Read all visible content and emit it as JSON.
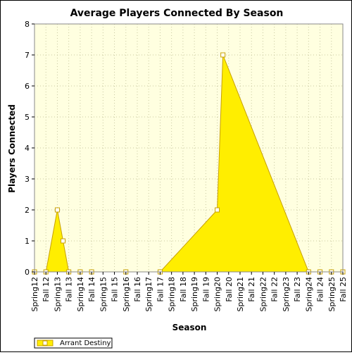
{
  "chart_data": {
    "type": "area",
    "title": "Average Players Connected By Season",
    "xlabel": "Season",
    "ylabel": "Players Connected",
    "ylim": [
      0,
      8
    ],
    "yticks": [
      "0",
      "1",
      "2",
      "3",
      "4",
      "5",
      "6",
      "7",
      "8"
    ],
    "grid": true,
    "legend_position": "bottom-left",
    "categories": [
      "Spring12",
      "Fall 12",
      "Spring13",
      "Fall 13",
      "Spring14",
      "Fall 14",
      "Spring15",
      "Fall 15",
      "Spring16",
      "Fall 16",
      "Spring17",
      "Fall 17",
      "Spring18",
      "Fall 18",
      "Spring19",
      "Fall 19",
      "Spring20",
      "Fall 20",
      "Spring21",
      "Fall 21",
      "Spring22",
      "Fall 22",
      "Spring23",
      "Fall 23",
      "Spring24",
      "Fall 24",
      "Spring25",
      "Fall 25"
    ],
    "x": [
      0,
      0.5,
      1,
      1.5,
      2,
      2.5,
      3,
      3.5,
      4,
      4.5,
      5,
      5.5,
      6,
      6.5,
      7,
      7.5,
      8,
      8.5,
      9,
      9.5,
      10,
      10.5,
      11,
      11.5,
      12,
      12.5,
      13,
      13.5
    ],
    "series": [
      {
        "name": "Arrant Destiny",
        "points": [
          {
            "x": 0,
            "y": 0
          },
          {
            "x": 0.5,
            "y": 0
          },
          {
            "x": 1,
            "y": 2
          },
          {
            "x": 1.25,
            "y": 1
          },
          {
            "x": 1.5,
            "y": 0
          },
          {
            "x": 2,
            "y": 0
          },
          {
            "x": 2.5,
            "y": 0
          },
          {
            "x": 4,
            "y": 0
          },
          {
            "x": 5.5,
            "y": 0
          },
          {
            "x": 8,
            "y": 2
          },
          {
            "x": 8.25,
            "y": 7
          },
          {
            "x": 12,
            "y": 0
          },
          {
            "x": 12.5,
            "y": 0
          },
          {
            "x": 13,
            "y": 0
          },
          {
            "x": 13.5,
            "y": 0
          }
        ]
      }
    ],
    "colors": {
      "fill": "#ffee00",
      "line": "#c8a000",
      "marker_fill": "#ffffff",
      "marker_stroke": "#c8a000",
      "plot_bg": "#ffffe0",
      "grid": "#c8c8a0"
    }
  }
}
